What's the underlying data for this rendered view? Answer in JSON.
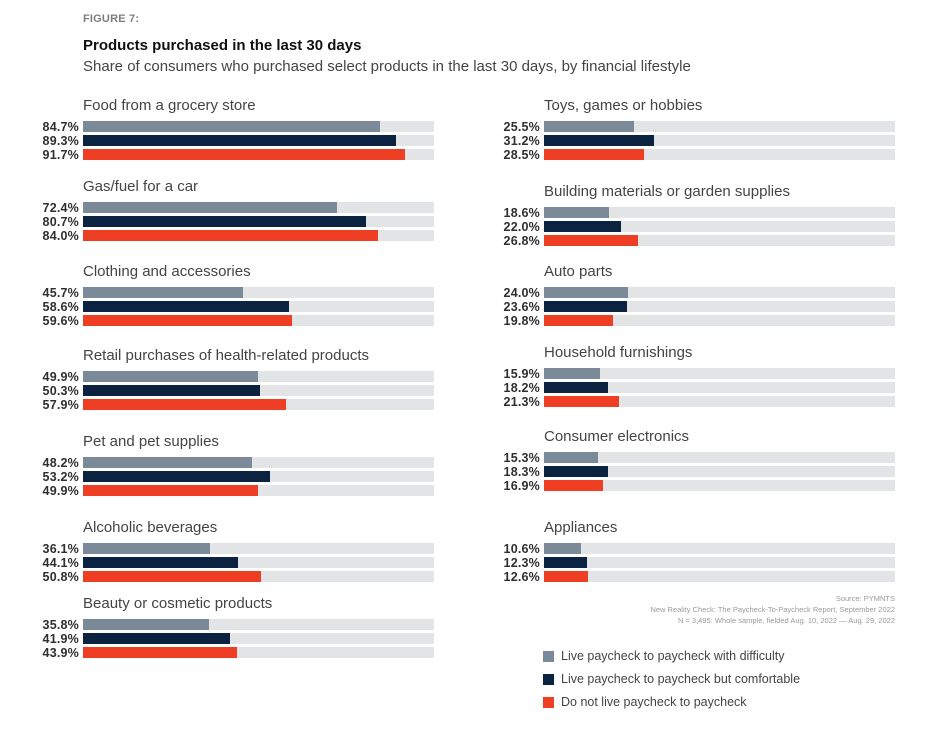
{
  "figure_label": "FIGURE 7:",
  "chart_data": {
    "type": "bar",
    "orientation": "horizontal",
    "title": "Products purchased in the last 30 days",
    "subtitle": "Share of consumers who purchased select products in the last 30 days, by financial lifestyle",
    "xlabel": "",
    "ylabel": "",
    "xlim": [
      0,
      100
    ],
    "unit": "%",
    "grid": false,
    "legend_position": "bottom-right",
    "series": [
      {
        "name": "Live paycheck to paycheck with difficulty",
        "color": "#7b8a99"
      },
      {
        "name": "Live paycheck to paycheck but comfortable",
        "color": "#0b2240"
      },
      {
        "name": "Do not live paycheck to paycheck",
        "color": "#ee3f24"
      }
    ],
    "categories": [
      {
        "label": "Food from a grocery store",
        "values": [
          84.7,
          89.3,
          91.7
        ],
        "labels": [
          "84.7%",
          "89.3%",
          "91.7%"
        ]
      },
      {
        "label": "Gas/fuel for a car",
        "values": [
          72.4,
          80.7,
          84.0
        ],
        "labels": [
          "72.4%",
          "80.7%",
          "84.0%"
        ]
      },
      {
        "label": "Clothing and accessories",
        "values": [
          45.7,
          58.6,
          59.6
        ],
        "labels": [
          "45.7%",
          "58.6%",
          "59.6%"
        ]
      },
      {
        "label": "Retail purchases of health-related products",
        "values": [
          49.9,
          50.3,
          57.9
        ],
        "labels": [
          "49.9%",
          "50.3%",
          "57.9%"
        ]
      },
      {
        "label": "Pet and pet supplies",
        "values": [
          48.2,
          53.2,
          49.9
        ],
        "labels": [
          "48.2%",
          "53.2%",
          "49.9%"
        ]
      },
      {
        "label": "Alcoholic beverages",
        "values": [
          36.1,
          44.1,
          50.8
        ],
        "labels": [
          "36.1%",
          "44.1%",
          "50.8%"
        ]
      },
      {
        "label": "Beauty or cosmetic products",
        "values": [
          35.8,
          41.9,
          43.9
        ],
        "labels": [
          "35.8%",
          "41.9%",
          "43.9%"
        ]
      },
      {
        "label": "Toys, games or hobbies",
        "values": [
          25.5,
          31.2,
          28.5
        ],
        "labels": [
          "25.5%",
          "31.2%",
          "28.5%"
        ]
      },
      {
        "label": "Building materials or garden supplies",
        "values": [
          18.6,
          22.0,
          26.8
        ],
        "labels": [
          "18.6%",
          "22.0%",
          "26.8%"
        ]
      },
      {
        "label": "Auto parts",
        "values": [
          24.0,
          23.6,
          19.8
        ],
        "labels": [
          "24.0%",
          "23.6%",
          "19.8%"
        ]
      },
      {
        "label": "Household furnishings",
        "values": [
          15.9,
          18.2,
          21.3
        ],
        "labels": [
          "15.9%",
          "18.2%",
          "21.3%"
        ]
      },
      {
        "label": "Consumer electronics",
        "values": [
          15.3,
          18.3,
          16.9
        ],
        "labels": [
          "15.3%",
          "18.3%",
          "16.9%"
        ]
      },
      {
        "label": "Appliances",
        "values": [
          10.6,
          12.3,
          12.6
        ],
        "labels": [
          "10.6%",
          "12.3%",
          "12.6%"
        ]
      }
    ]
  },
  "source": {
    "line1": "Source: PYMNTS",
    "line2": "New Reality Check: The Paycheck-To-Paycheck Report, September 2022",
    "line3": "N = 3,495: Whole sample, fielded Aug. 10, 2022 — Aug. 29, 2022"
  },
  "colors": {
    "track": "#e3e4e6"
  }
}
